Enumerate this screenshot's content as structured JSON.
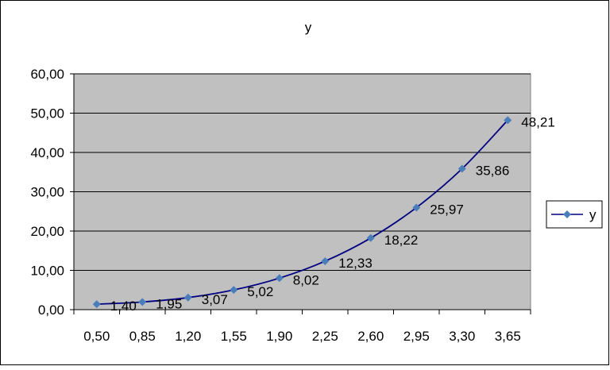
{
  "chart_data": {
    "type": "line",
    "title": "y",
    "categories": [
      "0,50",
      "0,85",
      "1,20",
      "1,55",
      "1,90",
      "2,25",
      "2,60",
      "2,95",
      "3,30",
      "3,65"
    ],
    "series": [
      {
        "name": "y",
        "values": [
          1.4,
          1.95,
          3.07,
          5.02,
          8.02,
          12.33,
          18.22,
          25.97,
          35.86,
          48.21
        ],
        "labels": [
          "1,40",
          "1,95",
          "3,07",
          "5,02",
          "8,02",
          "12,33",
          "18,22",
          "25,97",
          "35,86",
          "48,21"
        ]
      }
    ],
    "yticks": [
      "0,00",
      "10,00",
      "20,00",
      "30,00",
      "40,00",
      "50,00",
      "60,00"
    ],
    "ylim": [
      0,
      60
    ],
    "grid": true,
    "legend": "right",
    "colors": {
      "plot_bg": "#c0c0c0",
      "line": "#000080",
      "marker": "#4a7ebb",
      "grid": "#000000"
    }
  }
}
